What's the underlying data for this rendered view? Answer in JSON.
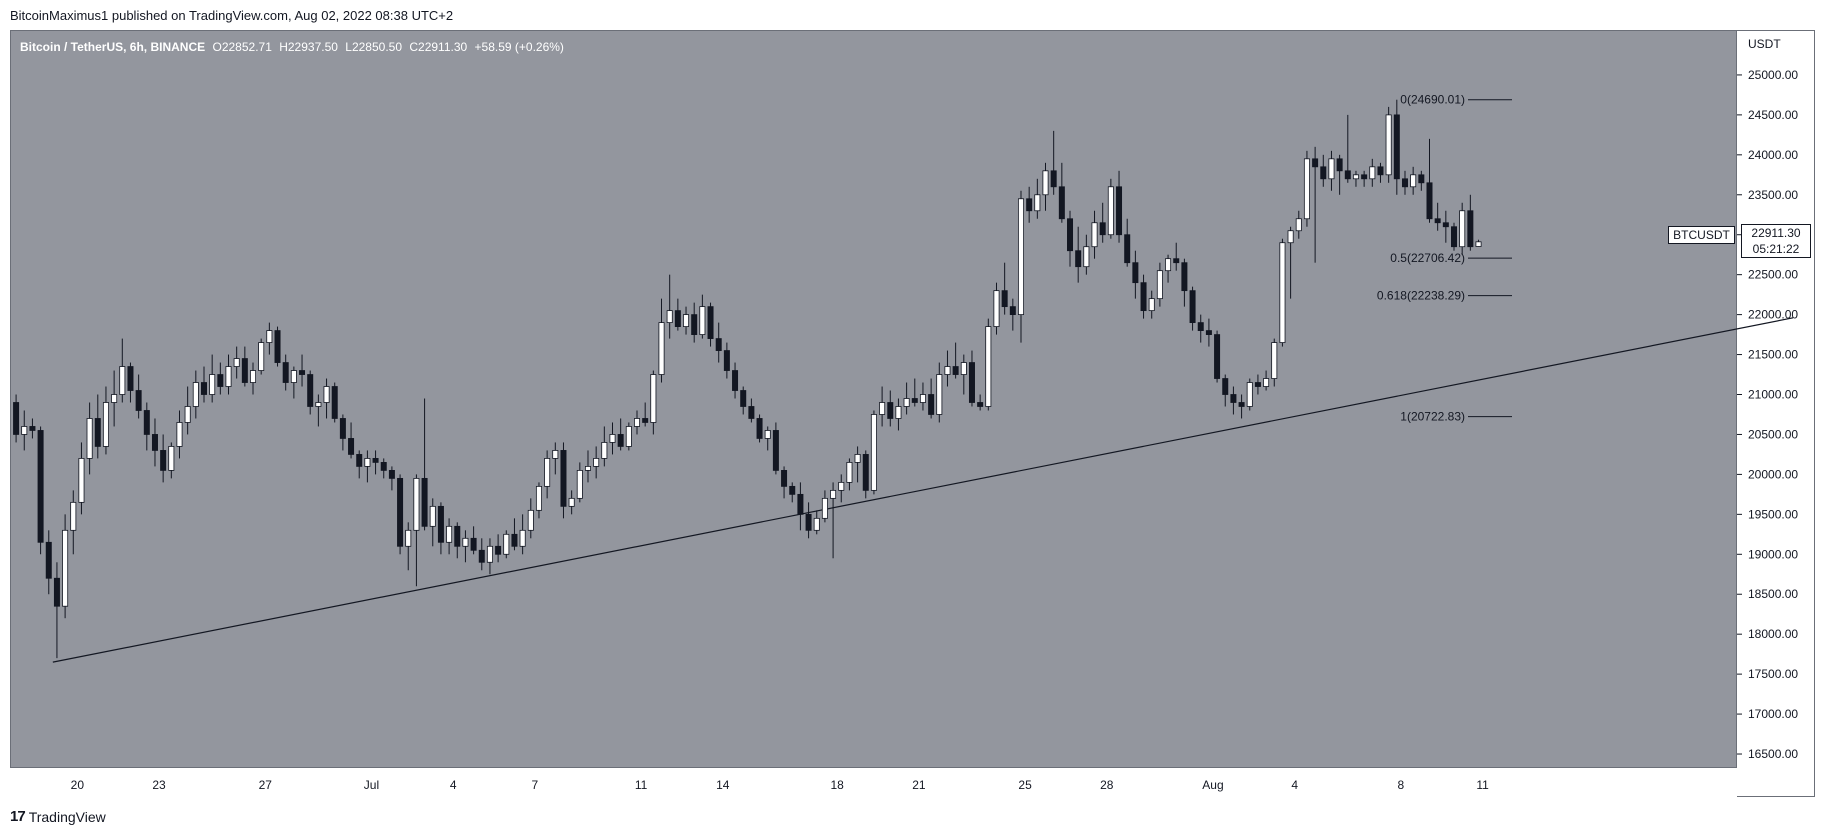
{
  "header": {
    "publish_line": "BitcoinMaximus1 published on TradingView.com, Aug 02, 2022 08:38 UTC+2"
  },
  "symbol": {
    "name": "Bitcoin / TetherUS, 6h, BINANCE",
    "open": "O22852.71",
    "high": "H22937.50",
    "low": "L22850.50",
    "close": "C22911.30",
    "change": "+58.59 (+0.26%)"
  },
  "price_axis": {
    "currency": "USDT",
    "ticks": [
      "25000.00",
      "24500.00",
      "24000.00",
      "23500.00",
      "23000.00",
      "22500.00",
      "22000.00",
      "21500.00",
      "21000.00",
      "20500.00",
      "20000.00",
      "19500.00",
      "19000.00",
      "18500.00",
      "18000.00",
      "17500.00",
      "17000.00",
      "16500.00"
    ]
  },
  "last_price": {
    "symbol_tag": "BTCUSDT",
    "price": "22911.30",
    "countdown": "05:21:22"
  },
  "footer": {
    "brand": "TradingView"
  },
  "colors": {
    "background": "#93969e",
    "up_candle": "#ffffff",
    "down_candle": "#131722",
    "line": "#131722"
  },
  "chart_data": {
    "type": "candlestick",
    "title": "Bitcoin / TetherUS, 6h, BINANCE",
    "ylabel": "USDT",
    "ylim": [
      16350,
      25550
    ],
    "x_tick_labels": [
      "20",
      "23",
      "27",
      "Jul",
      "4",
      "7",
      "11",
      "14",
      "18",
      "21",
      "25",
      "28",
      "Aug",
      "4",
      "8",
      "11"
    ],
    "fib_levels": [
      {
        "label": "0(24690.01)",
        "value": 24690.01
      },
      {
        "label": "0.5(22706.42)",
        "value": 22706.42
      },
      {
        "label": "0.618(22238.29)",
        "value": 22238.29
      },
      {
        "label": "1(20722.83)",
        "value": 20722.83
      }
    ],
    "trendline": [
      {
        "bar": 5,
        "price": 17650
      },
      {
        "bar": 218,
        "price": 21960
      }
    ],
    "candles_ohlc": [
      [
        20900,
        21000,
        20400,
        20500
      ],
      [
        20500,
        20800,
        20300,
        20600
      ],
      [
        20600,
        20700,
        20450,
        20550
      ],
      [
        20550,
        20600,
        19000,
        19150
      ],
      [
        19150,
        19300,
        18500,
        18700
      ],
      [
        18700,
        18900,
        17700,
        18350
      ],
      [
        18350,
        19500,
        18200,
        19300
      ],
      [
        19300,
        19800,
        19000,
        19650
      ],
      [
        19650,
        20400,
        19500,
        20200
      ],
      [
        20200,
        20900,
        20000,
        20700
      ],
      [
        20700,
        21000,
        20200,
        20350
      ],
      [
        20350,
        21100,
        20250,
        20900
      ],
      [
        20900,
        21300,
        20600,
        21000
      ],
      [
        21000,
        21700,
        20900,
        21350
      ],
      [
        21350,
        21400,
        20900,
        21050
      ],
      [
        21050,
        21250,
        20700,
        20800
      ],
      [
        20800,
        20900,
        20300,
        20500
      ],
      [
        20500,
        20700,
        20100,
        20300
      ],
      [
        20300,
        20500,
        19900,
        20050
      ],
      [
        20050,
        20400,
        19950,
        20350
      ],
      [
        20350,
        20800,
        20200,
        20650
      ],
      [
        20650,
        21100,
        20500,
        20850
      ],
      [
        20850,
        21300,
        20700,
        21150
      ],
      [
        21150,
        21350,
        20900,
        21000
      ],
      [
        21000,
        21500,
        20900,
        21250
      ],
      [
        21250,
        21400,
        21000,
        21100
      ],
      [
        21100,
        21500,
        21000,
        21350
      ],
      [
        21350,
        21600,
        21200,
        21450
      ],
      [
        21450,
        21600,
        21100,
        21150
      ],
      [
        21150,
        21400,
        21000,
        21300
      ],
      [
        21300,
        21700,
        21250,
        21650
      ],
      [
        21650,
        21900,
        21500,
        21800
      ],
      [
        21800,
        21850,
        21350,
        21400
      ],
      [
        21400,
        21500,
        21050,
        21150
      ],
      [
        21150,
        21350,
        20950,
        21300
      ],
      [
        21300,
        21500,
        21100,
        21250
      ],
      [
        21250,
        21300,
        20750,
        20850
      ],
      [
        20850,
        21000,
        20600,
        20900
      ],
      [
        20900,
        21200,
        20700,
        21100
      ],
      [
        21100,
        21150,
        20650,
        20700
      ],
      [
        20700,
        20750,
        20300,
        20450
      ],
      [
        20450,
        20650,
        20200,
        20250
      ],
      [
        20250,
        20300,
        19950,
        20100
      ],
      [
        20100,
        20300,
        19900,
        20200
      ],
      [
        20200,
        20300,
        20000,
        20150
      ],
      [
        20150,
        20200,
        19950,
        20050
      ],
      [
        20050,
        20100,
        19800,
        19950
      ],
      [
        19950,
        20000,
        19000,
        19100
      ],
      [
        19100,
        19400,
        18800,
        19300
      ],
      [
        19300,
        20000,
        18600,
        19950
      ],
      [
        19950,
        20950,
        19300,
        19350
      ],
      [
        19350,
        19700,
        19100,
        19600
      ],
      [
        19600,
        19650,
        19000,
        19150
      ],
      [
        19150,
        19450,
        19000,
        19350
      ],
      [
        19350,
        19400,
        18950,
        19100
      ],
      [
        19100,
        19300,
        18900,
        19200
      ],
      [
        19200,
        19350,
        19000,
        19050
      ],
      [
        19050,
        19200,
        18800,
        18900
      ],
      [
        18900,
        19200,
        18750,
        19100
      ],
      [
        19100,
        19250,
        18900,
        19000
      ],
      [
        19000,
        19300,
        18950,
        19250
      ],
      [
        19250,
        19450,
        19050,
        19100
      ],
      [
        19100,
        19500,
        19000,
        19300
      ],
      [
        19300,
        19700,
        19200,
        19550
      ],
      [
        19550,
        19900,
        19450,
        19850
      ],
      [
        19850,
        20300,
        19700,
        20200
      ],
      [
        20200,
        20400,
        20000,
        20300
      ],
      [
        20300,
        20400,
        19450,
        19600
      ],
      [
        19600,
        19800,
        19500,
        19700
      ],
      [
        19700,
        20150,
        19650,
        20050
      ],
      [
        20050,
        20300,
        19900,
        20100
      ],
      [
        20100,
        20350,
        19950,
        20200
      ],
      [
        20200,
        20600,
        20100,
        20400
      ],
      [
        20400,
        20650,
        20250,
        20500
      ],
      [
        20500,
        20700,
        20300,
        20350
      ],
      [
        20350,
        20650,
        20300,
        20600
      ],
      [
        20600,
        20800,
        20500,
        20700
      ],
      [
        20700,
        20900,
        20600,
        20650
      ],
      [
        20650,
        21300,
        20500,
        21250
      ],
      [
        21250,
        22200,
        21150,
        21900
      ],
      [
        21900,
        22500,
        21700,
        22050
      ],
      [
        22050,
        22200,
        21800,
        21850
      ],
      [
        21850,
        22100,
        21750,
        22000
      ],
      [
        22000,
        22150,
        21650,
        21750
      ],
      [
        21750,
        22250,
        21700,
        22100
      ],
      [
        22100,
        22150,
        21600,
        21700
      ],
      [
        21700,
        21900,
        21400,
        21550
      ],
      [
        21550,
        21650,
        21200,
        21300
      ],
      [
        21300,
        21400,
        20950,
        21050
      ],
      [
        21050,
        21100,
        20750,
        20850
      ],
      [
        20850,
        20950,
        20650,
        20700
      ],
      [
        20700,
        20750,
        20400,
        20450
      ],
      [
        20450,
        20600,
        20300,
        20550
      ],
      [
        20550,
        20650,
        20000,
        20050
      ],
      [
        20050,
        20100,
        19700,
        19850
      ],
      [
        19850,
        19900,
        19650,
        19750
      ],
      [
        19750,
        19900,
        19300,
        19500
      ],
      [
        19500,
        19650,
        19200,
        19300
      ],
      [
        19300,
        19550,
        19250,
        19450
      ],
      [
        19450,
        19800,
        19400,
        19700
      ],
      [
        19700,
        19900,
        18950,
        19800
      ],
      [
        19800,
        20000,
        19650,
        19900
      ],
      [
        19900,
        20200,
        19800,
        20150
      ],
      [
        20150,
        20350,
        19900,
        20250
      ],
      [
        20250,
        20300,
        19700,
        19800
      ],
      [
        19800,
        20800,
        19750,
        20750
      ],
      [
        20750,
        21100,
        20600,
        20900
      ],
      [
        20900,
        21050,
        20600,
        20700
      ],
      [
        20700,
        20950,
        20550,
        20850
      ],
      [
        20850,
        21150,
        20750,
        20950
      ],
      [
        20950,
        21200,
        20850,
        20900
      ],
      [
        20900,
        21150,
        20800,
        21000
      ],
      [
        21000,
        21200,
        20700,
        20750
      ],
      [
        20750,
        21400,
        20650,
        21250
      ],
      [
        21250,
        21550,
        21100,
        21350
      ],
      [
        21350,
        21650,
        21200,
        21250
      ],
      [
        21250,
        21500,
        21000,
        21400
      ],
      [
        21400,
        21550,
        20850,
        20900
      ],
      [
        20900,
        21000,
        20800,
        20850
      ],
      [
        20850,
        21950,
        20800,
        21850
      ],
      [
        21850,
        22400,
        21750,
        22300
      ],
      [
        22300,
        22650,
        22000,
        22100
      ],
      [
        22100,
        22200,
        21800,
        22000
      ],
      [
        22000,
        23550,
        21650,
        23450
      ],
      [
        23450,
        23600,
        23150,
        23300
      ],
      [
        23300,
        23700,
        23200,
        23500
      ],
      [
        23500,
        23900,
        23300,
        23800
      ],
      [
        23800,
        24300,
        23500,
        23600
      ],
      [
        23600,
        23900,
        23150,
        23200
      ],
      [
        23200,
        23300,
        22600,
        22800
      ],
      [
        22800,
        23100,
        22400,
        22600
      ],
      [
        22600,
        23000,
        22500,
        22850
      ],
      [
        22850,
        23300,
        22700,
        23150
      ],
      [
        23150,
        23400,
        22900,
        23000
      ],
      [
        23000,
        23700,
        22950,
        23600
      ],
      [
        23600,
        23800,
        22900,
        23000
      ],
      [
        23000,
        23200,
        22600,
        22650
      ],
      [
        22650,
        22800,
        22200,
        22400
      ],
      [
        22400,
        22500,
        21950,
        22050
      ],
      [
        22050,
        22300,
        21950,
        22200
      ],
      [
        22200,
        22650,
        22100,
        22550
      ],
      [
        22550,
        22750,
        22400,
        22700
      ],
      [
        22700,
        22900,
        22550,
        22650
      ],
      [
        22650,
        22700,
        22100,
        22300
      ],
      [
        22300,
        22350,
        21800,
        21900
      ],
      [
        21900,
        22000,
        21650,
        21800
      ],
      [
        21800,
        21950,
        21600,
        21750
      ],
      [
        21750,
        21800,
        21150,
        21200
      ],
      [
        21200,
        21250,
        20850,
        21000
      ],
      [
        21000,
        21100,
        20750,
        20900
      ],
      [
        20900,
        21000,
        20700,
        20850
      ],
      [
        20850,
        21200,
        20800,
        21150
      ],
      [
        21150,
        21250,
        21000,
        21100
      ],
      [
        21100,
        21300,
        21050,
        21200
      ],
      [
        21200,
        21700,
        21100,
        21650
      ],
      [
        21650,
        22950,
        21600,
        22900
      ],
      [
        22900,
        23100,
        22200,
        23050
      ],
      [
        23050,
        23300,
        22950,
        23200
      ],
      [
        23200,
        24050,
        23100,
        23950
      ],
      [
        23950,
        24100,
        22650,
        23850
      ],
      [
        23850,
        24000,
        23600,
        23700
      ],
      [
        23700,
        24050,
        23550,
        23950
      ],
      [
        23950,
        24000,
        23500,
        23800
      ],
      [
        23800,
        24500,
        23650,
        23700
      ],
      [
        23700,
        23800,
        23600,
        23750
      ],
      [
        23750,
        23800,
        23600,
        23700
      ],
      [
        23700,
        23950,
        23600,
        23850
      ],
      [
        23850,
        23900,
        23650,
        23750
      ],
      [
        23750,
        24600,
        23650,
        24500
      ],
      [
        24500,
        24690,
        23500,
        23700
      ],
      [
        23700,
        23800,
        23500,
        23600
      ],
      [
        23600,
        23850,
        23500,
        23750
      ],
      [
        23750,
        23800,
        23550,
        23650
      ],
      [
        23650,
        24200,
        23150,
        23200
      ],
      [
        23200,
        23400,
        23050,
        23150
      ],
      [
        23150,
        23300,
        22900,
        23100
      ],
      [
        23100,
        23150,
        22800,
        22850
      ],
      [
        22850,
        23400,
        22750,
        23300
      ],
      [
        23300,
        23500,
        22800,
        22850
      ],
      [
        22852.71,
        22937.5,
        22850.5,
        22911.3
      ]
    ]
  }
}
